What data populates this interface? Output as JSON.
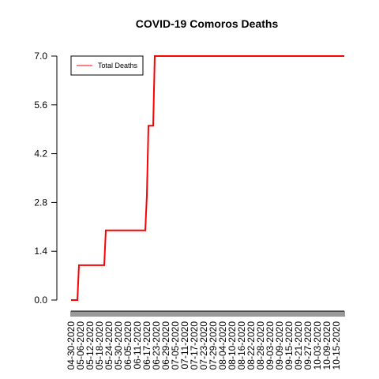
{
  "chart_data": {
    "type": "line",
    "title": "COVID-19 Comoros Deaths",
    "xlabel": "",
    "ylabel": "",
    "ylim": [
      0,
      7
    ],
    "y_ticks": [
      "0.0",
      "1.4",
      "2.8",
      "4.2",
      "5.6",
      "7.0"
    ],
    "x_tick_labels": [
      "04-30-2020",
      "05-06-2020",
      "05-12-2020",
      "05-18-2020",
      "05-24-2020",
      "05-30-2020",
      "06-05-2020",
      "06-11-2020",
      "06-17-2020",
      "06-23-2020",
      "06-29-2020",
      "07-05-2020",
      "07-11-2020",
      "07-17-2020",
      "07-23-2020",
      "07-29-2020",
      "08-04-2020",
      "08-10-2020",
      "08-16-2020",
      "08-22-2020",
      "08-28-2020",
      "09-03-2020",
      "09-09-2020",
      "09-15-2020",
      "09-21-2020",
      "09-27-2020",
      "10-03-2020",
      "10-09-2020",
      "10-15-2020"
    ],
    "x_start": "04-30-2020",
    "x_end": "10-20-2020",
    "legend": {
      "position": "top-left",
      "entries": [
        "Total Deaths"
      ]
    },
    "grid": false,
    "series": [
      {
        "name": "Total Deaths",
        "color": "#ff0000",
        "x": [
          "04-30-2020",
          "05-04-2020",
          "05-05-2020",
          "05-21-2020",
          "05-22-2020",
          "06-16-2020",
          "06-17-2020",
          "06-18-2020",
          "06-21-2020",
          "06-22-2020",
          "10-20-2020"
        ],
        "values": [
          0,
          0,
          1,
          1,
          2,
          2,
          3,
          5,
          5,
          7,
          7
        ]
      }
    ]
  }
}
